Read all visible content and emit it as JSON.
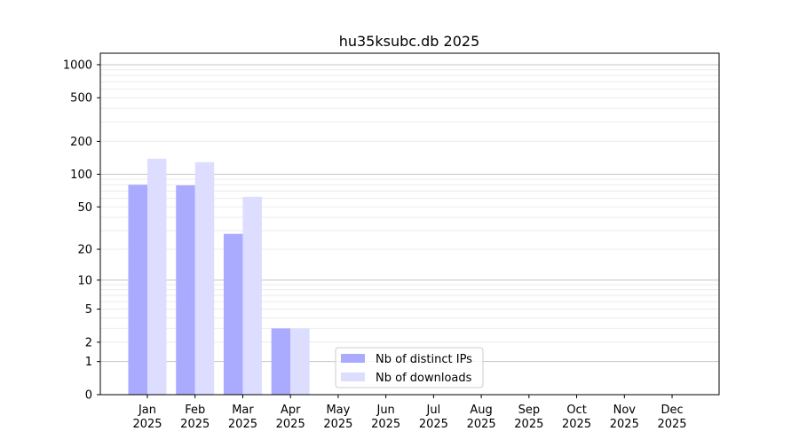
{
  "chart_data": {
    "type": "bar",
    "title": "hu35ksubc.db 2025",
    "xlabel": "",
    "ylabel": "",
    "yscale": "symlog (log10(1+y))",
    "ylim": [
      0,
      1300
    ],
    "yticks": [
      0,
      1,
      2,
      5,
      10,
      20,
      50,
      100,
      200,
      500,
      1000
    ],
    "ytick_labels": [
      "0",
      "1",
      "2",
      "5",
      "10",
      "20",
      "50",
      "100",
      "200",
      "500",
      "1000"
    ],
    "grid": true,
    "legend_position": "lower-center",
    "categories": [
      "Jan\n2025",
      "Feb\n2025",
      "Mar\n2025",
      "Apr\n2025",
      "May\n2025",
      "Jun\n2025",
      "Jul\n2025",
      "Aug\n2025",
      "Sep\n2025",
      "Oct\n2025",
      "Nov\n2025",
      "Dec\n2025"
    ],
    "month_labels": [
      "Jan",
      "Feb",
      "Mar",
      "Apr",
      "May",
      "Jun",
      "Jul",
      "Aug",
      "Sep",
      "Oct",
      "Nov",
      "Dec"
    ],
    "year_label": "2025",
    "series": [
      {
        "name": "Nb of distinct IPs",
        "color": "#aaaaff",
        "values": [
          80,
          79,
          28,
          3,
          0,
          0,
          0,
          0,
          0,
          0,
          0,
          0
        ]
      },
      {
        "name": "Nb of downloads",
        "color": "#ddddff",
        "values": [
          139,
          129,
          62,
          3,
          0,
          0,
          0,
          0,
          0,
          0,
          0,
          0
        ]
      }
    ]
  }
}
